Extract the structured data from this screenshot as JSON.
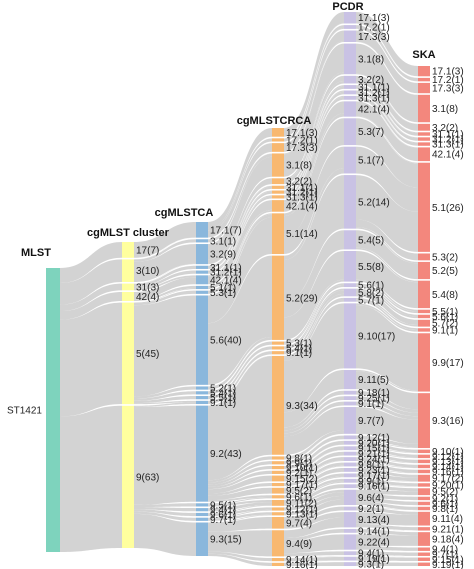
{
  "columns": [
    {
      "key": "mlst",
      "title": "MLST",
      "color": "#7ed3bd",
      "nodes": [
        {
          "label": "ST1421",
          "count": 230
        }
      ]
    },
    {
      "key": "cgmlst_cluster",
      "title": "cgMLST cluster",
      "color": "#ffff9e",
      "nodes": [
        {
          "label": "17(7)",
          "count": 7
        },
        {
          "label": "3(10)",
          "count": 10
        },
        {
          "label": "31(3)",
          "count": 3
        },
        {
          "label": "42(4)",
          "count": 4
        },
        {
          "label": "5(45)",
          "count": 45
        },
        {
          "label": "9(63)",
          "count": 63
        }
      ]
    },
    {
      "key": "cgmlstca",
      "title": "cgMLSTCA",
      "color": "#8ab7dc",
      "nodes": [
        {
          "label": "17.1(7)",
          "count": 7
        },
        {
          "label": "3.1(1)",
          "count": 1
        },
        {
          "label": "3.2(9)",
          "count": 9
        },
        {
          "label": "31.1(1)",
          "count": 1
        },
        {
          "label": "31.2(1)",
          "count": 1
        },
        {
          "label": "42.1(4)",
          "count": 4
        },
        {
          "label": "5.1(1)",
          "count": 1
        },
        {
          "label": "5.3(1)",
          "count": 1
        },
        {
          "label": "5.6(40)",
          "count": 40
        },
        {
          "label": "5.2(1)",
          "count": 1
        },
        {
          "label": "5.4(1)",
          "count": 1
        },
        {
          "label": "5.5(1)",
          "count": 1
        },
        {
          "label": "9.1(1)",
          "count": 1
        },
        {
          "label": "9.2(43)",
          "count": 43
        },
        {
          "label": "9.5(1)",
          "count": 1
        },
        {
          "label": "9.4(1)",
          "count": 1
        },
        {
          "label": "9.6(1)",
          "count": 1
        },
        {
          "label": "9.7(1)",
          "count": 1
        },
        {
          "label": "9.3(15)",
          "count": 15
        }
      ]
    },
    {
      "key": "cgmlstcrca",
      "title": "cgMLSTCRCA",
      "color": "#f8b870",
      "nodes": [
        {
          "label": "17.1(3)",
          "count": 3
        },
        {
          "label": "17.2(1)",
          "count": 1
        },
        {
          "label": "17.3(3)",
          "count": 3
        },
        {
          "label": "3.1(8)",
          "count": 8
        },
        {
          "label": "3.2(2)",
          "count": 2
        },
        {
          "label": "31.1(1)",
          "count": 1
        },
        {
          "label": "31.2(1)",
          "count": 1
        },
        {
          "label": "31.3(1)",
          "count": 1
        },
        {
          "label": "42.1(4)",
          "count": 4
        },
        {
          "label": "5.1(14)",
          "count": 14
        },
        {
          "label": "5.2(29)",
          "count": 29
        },
        {
          "label": "5.3(1)",
          "count": 1
        },
        {
          "label": "5.4(1)",
          "count": 1
        },
        {
          "label": "9.1(1)",
          "count": 1
        },
        {
          "label": "9.3(34)",
          "count": 34
        },
        {
          "label": "9.8(1)",
          "count": 1
        },
        {
          "label": "9.9(1)",
          "count": 1
        },
        {
          "label": "9.10(1)",
          "count": 1
        },
        {
          "label": "9.2(1)",
          "count": 1
        },
        {
          "label": "9.15(2)",
          "count": 2
        },
        {
          "label": "9.17(1)",
          "count": 1
        },
        {
          "label": "9.5(2)",
          "count": 2
        },
        {
          "label": "9.6(1)",
          "count": 1
        },
        {
          "label": "9.11(2)",
          "count": 2
        },
        {
          "label": "9.12(1)",
          "count": 1
        },
        {
          "label": "9.13(1)",
          "count": 1
        },
        {
          "label": "9.7(4)",
          "count": 4
        },
        {
          "label": "9.4(9)",
          "count": 9
        },
        {
          "label": "9.14(1)",
          "count": 1
        },
        {
          "label": "9.16(1)",
          "count": 1
        }
      ]
    },
    {
      "key": "pcdr",
      "title": "PCDR",
      "color": "#c9c2e4",
      "nodes": [
        {
          "label": "17.1(3)",
          "count": 3
        },
        {
          "label": "17.2(1)",
          "count": 1
        },
        {
          "label": "17.3(3)",
          "count": 3
        },
        {
          "label": "3.1(8)",
          "count": 8
        },
        {
          "label": "3.2(2)",
          "count": 2
        },
        {
          "label": "31.1(1)",
          "count": 1
        },
        {
          "label": "31.2(1)",
          "count": 1
        },
        {
          "label": "31.3(1)",
          "count": 1
        },
        {
          "label": "42.1(4)",
          "count": 4
        },
        {
          "label": "5.3(7)",
          "count": 7
        },
        {
          "label": "5.1(7)",
          "count": 7
        },
        {
          "label": "5.2(14)",
          "count": 14
        },
        {
          "label": "5.4(5)",
          "count": 5
        },
        {
          "label": "5.5(8)",
          "count": 8
        },
        {
          "label": "5.6(1)",
          "count": 1
        },
        {
          "label": "5.8(2)",
          "count": 2
        },
        {
          "label": "5.7(1)",
          "count": 1
        },
        {
          "label": "9.10(17)",
          "count": 17
        },
        {
          "label": "9.11(5)",
          "count": 5
        },
        {
          "label": "9.18(1)",
          "count": 1
        },
        {
          "label": "9.25(1)",
          "count": 1
        },
        {
          "label": "9.1(1)",
          "count": 1
        },
        {
          "label": "9.7(7)",
          "count": 7
        },
        {
          "label": "9.12(1)",
          "count": 1
        },
        {
          "label": "9.20(1)",
          "count": 1
        },
        {
          "label": "9.15(1)",
          "count": 1
        },
        {
          "label": "9.21(1)",
          "count": 1
        },
        {
          "label": "9.24(1)",
          "count": 1
        },
        {
          "label": "9.8(1)",
          "count": 1
        },
        {
          "label": "9.23(1)",
          "count": 1
        },
        {
          "label": "9.17(1)",
          "count": 1
        },
        {
          "label": "9.9(1)",
          "count": 1
        },
        {
          "label": "9.16(1)",
          "count": 1
        },
        {
          "label": "9.6(4)",
          "count": 4
        },
        {
          "label": "9.2(1)",
          "count": 1
        },
        {
          "label": "9.13(4)",
          "count": 4
        },
        {
          "label": "9.14(1)",
          "count": 1
        },
        {
          "label": "9.22(4)",
          "count": 4
        },
        {
          "label": "9.4(1)",
          "count": 1
        },
        {
          "label": "9.19(1)",
          "count": 1
        },
        {
          "label": "9.3(1)",
          "count": 1
        }
      ]
    },
    {
      "key": "ska",
      "title": "SKA",
      "color": "#f3877d",
      "nodes": [
        {
          "label": "17.1(3)",
          "count": 3
        },
        {
          "label": "17.2(1)",
          "count": 1
        },
        {
          "label": "17.3(3)",
          "count": 3
        },
        {
          "label": "3.1(8)",
          "count": 8
        },
        {
          "label": "3.2(2)",
          "count": 2
        },
        {
          "label": "31.1(1)",
          "count": 1
        },
        {
          "label": "31.2(1)",
          "count": 1
        },
        {
          "label": "31.3(1)",
          "count": 1
        },
        {
          "label": "42.1(4)",
          "count": 4
        },
        {
          "label": "5.1(26)",
          "count": 26
        },
        {
          "label": "5.3(2)",
          "count": 2
        },
        {
          "label": "5.2(5)",
          "count": 5
        },
        {
          "label": "5.4(8)",
          "count": 8
        },
        {
          "label": "5.5(1)",
          "count": 1
        },
        {
          "label": "5.6(1)",
          "count": 1
        },
        {
          "label": "5.7(2)",
          "count": 2
        },
        {
          "label": "9.1(1)",
          "count": 1
        },
        {
          "label": "9.9(17)",
          "count": 17
        },
        {
          "label": "9.3(16)",
          "count": 16
        },
        {
          "label": "9.10(1)",
          "count": 1
        },
        {
          "label": "9.12(1)",
          "count": 1
        },
        {
          "label": "9.13(1)",
          "count": 1
        },
        {
          "label": "9.14(1)",
          "count": 1
        },
        {
          "label": "9.16(1)",
          "count": 1
        },
        {
          "label": "9.17(2)",
          "count": 2
        },
        {
          "label": "9.20(1)",
          "count": 1
        },
        {
          "label": "9.5(2)",
          "count": 2
        },
        {
          "label": "9.2(1)",
          "count": 1
        },
        {
          "label": "9.6(1)",
          "count": 1
        },
        {
          "label": "9.8(1)",
          "count": 1
        },
        {
          "label": "9.11(4)",
          "count": 4
        },
        {
          "label": "9.21(1)",
          "count": 1
        },
        {
          "label": "9.18(4)",
          "count": 4
        },
        {
          "label": "9.4(1)",
          "count": 1
        },
        {
          "label": "9.7(1)",
          "count": 1
        },
        {
          "label": "9.15(1)",
          "count": 1
        },
        {
          "label": "9.19(1)",
          "count": 1
        }
      ]
    }
  ],
  "flow_color": "#c8c8c8"
}
